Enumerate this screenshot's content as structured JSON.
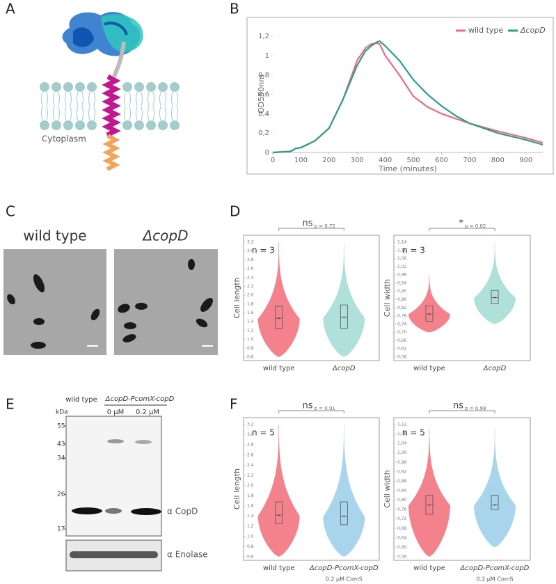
{
  "figure": {
    "panel_labels": [
      "A",
      "B",
      "C",
      "D",
      "E",
      "F"
    ],
    "a_caption": "Cytoplasm",
    "c_labels": [
      "wild type",
      "ΔcopD"
    ],
    "e": {
      "kda": "kDa",
      "markers": [
        "55",
        "43",
        "34",
        "26",
        "17"
      ],
      "lane_wt": "wild type",
      "lane_mut": "ΔcopD-PcomX-copD",
      "conc": [
        "0 µM",
        "0.2 µM"
      ],
      "antibodies": [
        "α CopD",
        "α Enolase"
      ]
    }
  },
  "chart_data": [
    {
      "type": "line",
      "xlabel": "Time (minutes)",
      "ylabel": "OD550nm",
      "x": [
        0,
        60,
        70,
        80,
        100,
        150,
        200,
        250,
        300,
        330,
        350,
        370,
        380,
        400,
        450,
        500,
        550,
        600,
        650,
        700,
        800,
        900,
        960
      ],
      "series": [
        {
          "name": "wild type",
          "color": "#f06b7a",
          "values": [
            0,
            0.01,
            0.02,
            0.04,
            0.05,
            0.12,
            0.25,
            0.55,
            0.95,
            1.08,
            1.12,
            1.13,
            1.12,
            1.0,
            0.8,
            0.58,
            0.47,
            0.4,
            0.35,
            0.3,
            0.22,
            0.15,
            0.1
          ]
        },
        {
          "name": "ΔcopD",
          "color": "#2a9d8f",
          "values": [
            0,
            0.01,
            0.02,
            0.04,
            0.05,
            0.12,
            0.25,
            0.55,
            0.9,
            1.05,
            1.1,
            1.14,
            1.15,
            1.1,
            0.95,
            0.75,
            0.6,
            0.48,
            0.38,
            0.3,
            0.2,
            0.13,
            0.08
          ]
        }
      ],
      "xlim": [
        0,
        960
      ],
      "xticks": [
        0,
        100,
        200,
        300,
        400,
        500,
        600,
        700,
        800,
        900
      ],
      "ylim": [
        0,
        1.28
      ],
      "yticks": [
        0,
        {
          "value": 0.2,
          "label": "0,2"
        },
        {
          "value": 0.4,
          "label": "0,4"
        },
        {
          "value": 0.6,
          "label": "0,6"
        },
        {
          "value": 0.8,
          "label": "0,8"
        },
        1,
        {
          "value": 1.2,
          "label": "1,2"
        }
      ],
      "legend": "top-right"
    },
    {
      "type": "violin",
      "ylabel": "Cell length",
      "annotation": "n = 3",
      "significance": "ns",
      "p_label": "p = 0.72",
      "categories": [
        "wild type",
        "ΔcopD"
      ],
      "violins": [
        {
          "color": "#f2747f",
          "min": 0.6,
          "q1": 1.25,
          "median": 1.48,
          "q3": 1.75,
          "max": 3.2
        },
        {
          "color": "#a7ddd6",
          "min": 0.6,
          "q1": 1.25,
          "median": 1.5,
          "q3": 1.78,
          "max": 3.2
        }
      ],
      "ylim": [
        0.6,
        3.2
      ],
      "yticks": [
        {
          "value": 0.6,
          "label": "0,6"
        },
        {
          "value": 0.8,
          "label": "0,8"
        },
        {
          "value": 1.0,
          "label": "1,0"
        },
        {
          "value": 1.2,
          "label": "1,2"
        },
        {
          "value": 1.4,
          "label": "1,4"
        },
        {
          "value": 1.6,
          "label": "1,6"
        },
        {
          "value": 1.8,
          "label": "1,8"
        },
        {
          "value": 2.0,
          "label": "2,0"
        },
        {
          "value": 2.2,
          "label": "2,2"
        },
        {
          "value": 2.4,
          "label": "2,4"
        },
        {
          "value": 2.6,
          "label": "2,6"
        },
        {
          "value": 2.8,
          "label": "2,8"
        },
        {
          "value": 3.0,
          "label": "3,0"
        },
        {
          "value": 3.2,
          "label": "3,2"
        }
      ]
    },
    {
      "type": "violin",
      "ylabel": "Cell width",
      "annotation": "n = 3",
      "significance": "*",
      "p_label": "p = 0.02",
      "categories": [
        "wild type",
        "ΔcopD"
      ],
      "violins": [
        {
          "color": "#f2747f",
          "min": 0.7,
          "q1": 0.755,
          "median": 0.79,
          "q3": 0.83,
          "max": 0.98
        },
        {
          "color": "#a7ddd6",
          "min": 0.74,
          "q1": 0.84,
          "median": 0.87,
          "q3": 0.905,
          "max": 1.14
        }
      ],
      "ylim": [
        0.58,
        1.14
      ],
      "yticks": [
        {
          "value": 0.58,
          "label": "0,58"
        },
        {
          "value": 0.62,
          "label": "0,62"
        },
        {
          "value": 0.66,
          "label": "0,66"
        },
        {
          "value": 0.7,
          "label": "0,70"
        },
        {
          "value": 0.74,
          "label": "0,74"
        },
        {
          "value": 0.78,
          "label": "0,78"
        },
        {
          "value": 0.82,
          "label": "0,82"
        },
        {
          "value": 0.86,
          "label": "0,86"
        },
        {
          "value": 0.9,
          "label": "0,90"
        },
        {
          "value": 0.94,
          "label": "0,94"
        },
        {
          "value": 0.98,
          "label": "0,98"
        },
        {
          "value": 1.02,
          "label": "1,02"
        },
        {
          "value": 1.06,
          "label": "1,06"
        },
        {
          "value": 1.1,
          "label": "1,10"
        },
        {
          "value": 1.14,
          "label": "1,14"
        }
      ]
    },
    {
      "type": "violin",
      "ylabel": "Cell length",
      "annotation": "n = 5",
      "significance": "ns",
      "p_label": "p = 0.91",
      "categories": [
        "wild type",
        "ΔcopD-PcomX-copD"
      ],
      "category_note": "0.2 µM ComS",
      "violins": [
        {
          "color": "#f2747f",
          "min": 0.6,
          "q1": 1.25,
          "median": 1.42,
          "q3": 1.68,
          "max": 3.2
        },
        {
          "color": "#9fd0ea",
          "min": 0.6,
          "q1": 1.23,
          "median": 1.4,
          "q3": 1.68,
          "max": 3.2
        }
      ],
      "ylim": [
        0.6,
        3.2
      ],
      "yticks": [
        {
          "value": 0.6,
          "label": "0,6"
        },
        {
          "value": 0.8,
          "label": "0,8"
        },
        {
          "value": 1.0,
          "label": "1,0"
        },
        {
          "value": 1.2,
          "label": "1,2"
        },
        {
          "value": 1.4,
          "label": "1,4"
        },
        {
          "value": 1.6,
          "label": "1,6"
        },
        {
          "value": 1.8,
          "label": "1,8"
        },
        {
          "value": 2.0,
          "label": "2,0"
        },
        {
          "value": 2.2,
          "label": "2,2"
        },
        {
          "value": 2.4,
          "label": "2,4"
        },
        {
          "value": 2.6,
          "label": "2,6"
        },
        {
          "value": 2.8,
          "label": "2,8"
        },
        {
          "value": 3.0,
          "label": "3,0"
        },
        {
          "value": 3.2,
          "label": "3,2"
        }
      ]
    },
    {
      "type": "violin",
      "ylabel": "Cell width",
      "annotation": "n = 5",
      "significance": "ns",
      "p_label": "p = 0.99",
      "categories": [
        "wild type",
        "ΔcopD-PcomX-copD"
      ],
      "category_note": "0.2 µM ComS",
      "violins": [
        {
          "color": "#f2747f",
          "min": 0.56,
          "q1": 0.74,
          "median": 0.78,
          "q3": 0.82,
          "max": 1.1
        },
        {
          "color": "#9fd0ea",
          "min": 0.6,
          "q1": 0.76,
          "median": 0.78,
          "q3": 0.82,
          "max": 1.1
        }
      ],
      "ylim": [
        0.56,
        1.12
      ],
      "yticks": [
        {
          "value": 0.56,
          "label": "0,56"
        },
        {
          "value": 0.6,
          "label": "0,60"
        },
        {
          "value": 0.64,
          "label": "0,64"
        },
        {
          "value": 0.68,
          "label": "0,68"
        },
        {
          "value": 0.72,
          "label": "0,72"
        },
        {
          "value": 0.76,
          "label": "0,76"
        },
        {
          "value": 0.8,
          "label": "0,80"
        },
        {
          "value": 0.84,
          "label": "0,84"
        },
        {
          "value": 0.88,
          "label": "0,88"
        },
        {
          "value": 0.92,
          "label": "0,92"
        },
        {
          "value": 0.96,
          "label": "0,96"
        },
        {
          "value": 1.0,
          "label": "1,00"
        },
        {
          "value": 1.04,
          "label": "1,04"
        },
        {
          "value": 1.08,
          "label": "1,08"
        },
        {
          "value": 1.12,
          "label": "1,12"
        }
      ]
    }
  ]
}
